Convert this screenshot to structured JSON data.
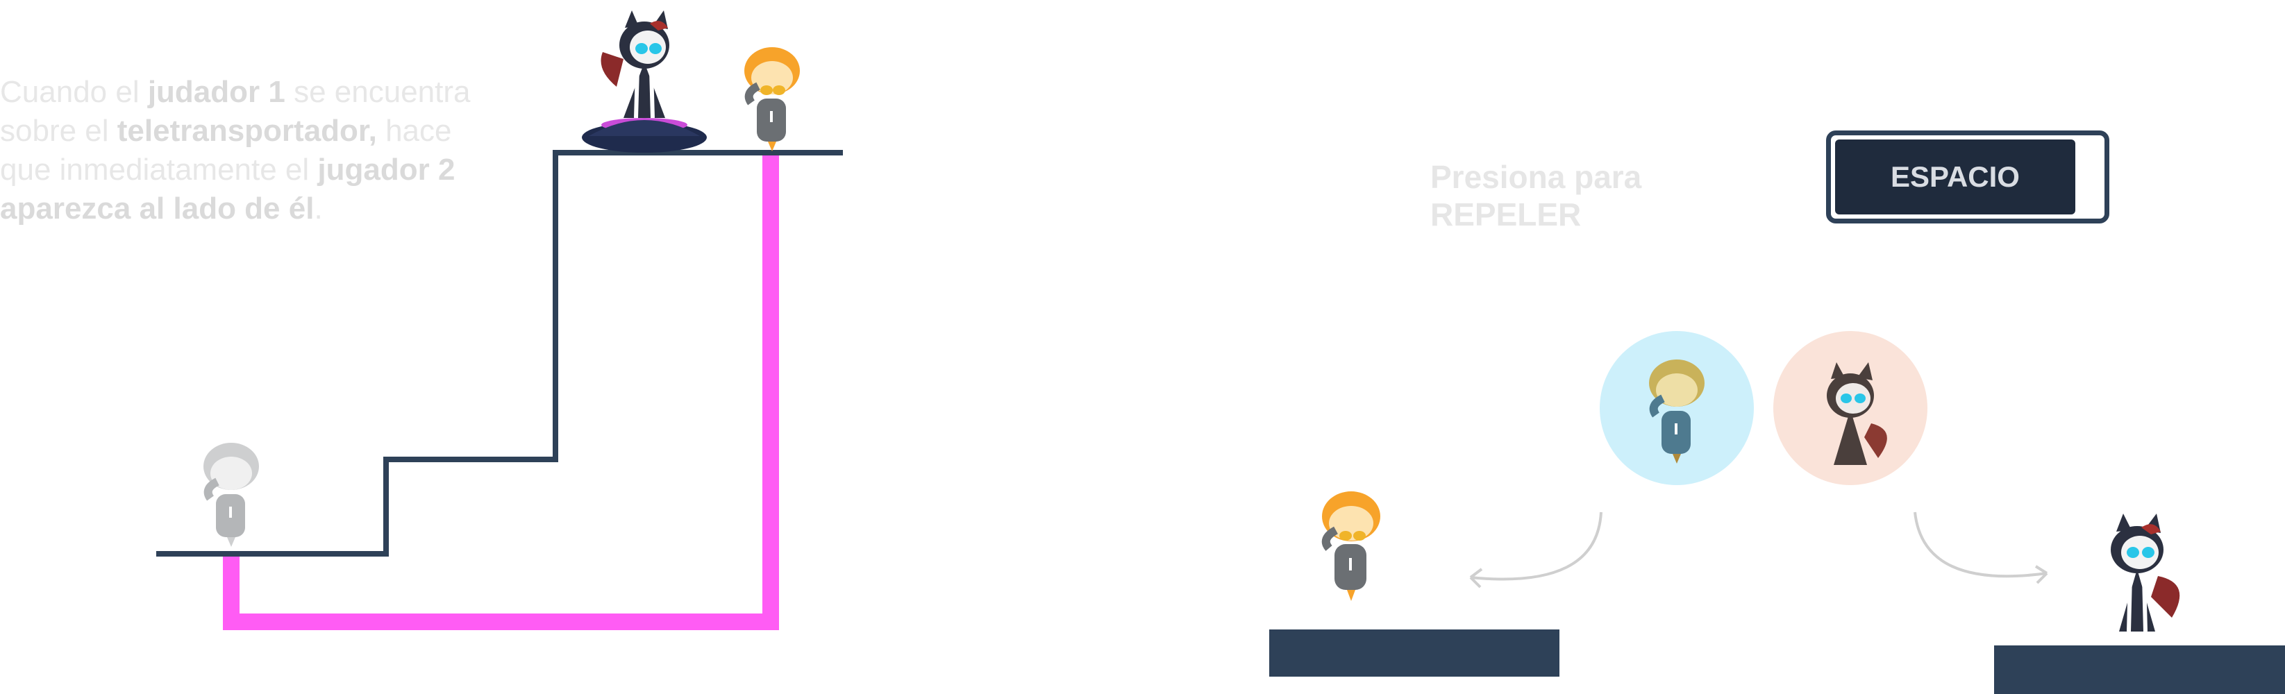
{
  "instruction": {
    "t1": "Cuando  el ",
    "b1": "judador 1",
    "t2": " se encuentra sobre el ",
    "b2": "teletransportador,",
    "t3": " hace que inmediatamente el ",
    "b3": "jugador 2 aparezca al lado de él",
    "t4": "."
  },
  "repel": {
    "hint": "Presiona para REPELER",
    "key_label": "ESPACIO"
  },
  "colors": {
    "navy": "#2e4158",
    "teleport_path": "#ff5cf4",
    "orange": "#f7a32a",
    "gray_character": "#6b6f73",
    "bubble_blue": "#cdf0fb",
    "bubble_peach": "#fae3d9"
  },
  "icons": {
    "player1": "fox-character-icon",
    "player2": "orange-hair-character-icon",
    "teleporter": "teleporter-pad-icon"
  }
}
